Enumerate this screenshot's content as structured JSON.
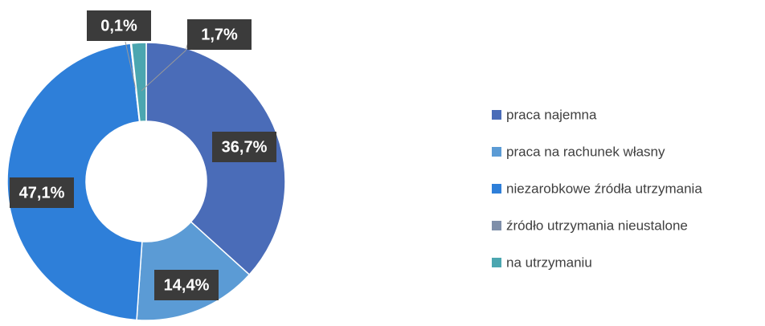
{
  "chart_data": {
    "type": "donut",
    "categories": [
      "praca najemna",
      "praca na rachunek własny",
      "niezarobkowe źródła utrzymania",
      "źródło utrzymania nieustalone",
      "na utrzymaniu"
    ],
    "values": [
      36.7,
      14.4,
      47.1,
      0.1,
      1.7
    ],
    "value_labels": [
      "36,7%",
      "14,4%",
      "47,1%",
      "0,1%",
      "1,7%"
    ],
    "colors": [
      "#4a6cb8",
      "#5b9bd5",
      "#2e7fd9",
      "#7f8fa9",
      "#4ba6b0"
    ],
    "legend": "right"
  }
}
